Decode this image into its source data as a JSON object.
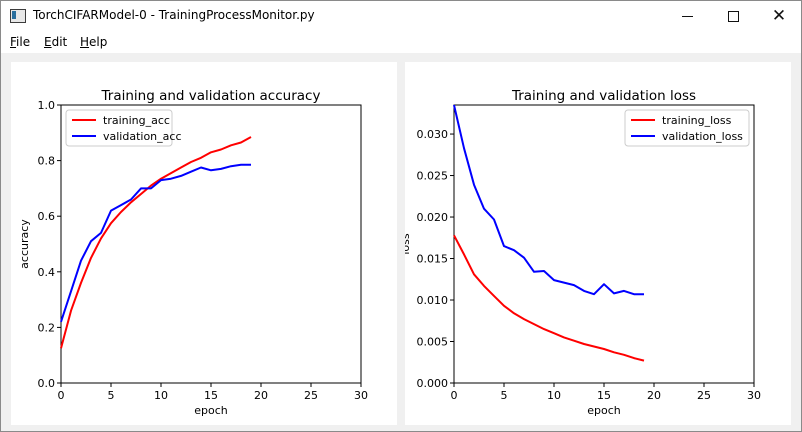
{
  "window": {
    "title": "TorchCIFARModel-0 - TrainingProcessMonitor.py",
    "controls": {
      "minimize": "minimize",
      "maximize": "maximize",
      "close": "✕"
    }
  },
  "menu": {
    "items": [
      {
        "first": "F",
        "rest": "ile"
      },
      {
        "first": "E",
        "rest": "dit"
      },
      {
        "first": "H",
        "rest": "elp"
      }
    ]
  },
  "colors": {
    "training": "#ff0000",
    "validation": "#0000ff"
  },
  "chart_data": [
    {
      "type": "line",
      "title": "Training and validation accuracy",
      "xlabel": "epoch",
      "ylabel": "accuracy",
      "xlim": [
        0,
        30
      ],
      "ylim": [
        0.0,
        1.0
      ],
      "xticks": [
        "0",
        "5",
        "10",
        "15",
        "20",
        "25",
        "30"
      ],
      "yticks": [
        "0.0",
        "0.2",
        "0.4",
        "0.6",
        "0.8",
        "1.0"
      ],
      "legend_position": "top-left",
      "x": [
        0,
        1,
        2,
        3,
        4,
        5,
        6,
        7,
        8,
        9,
        10,
        11,
        12,
        13,
        14,
        15,
        16,
        17,
        18,
        19
      ],
      "series": [
        {
          "name": "training_acc",
          "color": "#ff0000",
          "values": [
            0.125,
            0.26,
            0.36,
            0.45,
            0.52,
            0.575,
            0.615,
            0.65,
            0.68,
            0.71,
            0.735,
            0.755,
            0.775,
            0.795,
            0.81,
            0.83,
            0.84,
            0.855,
            0.865,
            0.885
          ]
        },
        {
          "name": "validation_acc",
          "color": "#0000ff",
          "values": [
            0.22,
            0.33,
            0.44,
            0.51,
            0.54,
            0.62,
            0.64,
            0.66,
            0.7,
            0.7,
            0.73,
            0.735,
            0.745,
            0.76,
            0.775,
            0.765,
            0.77,
            0.78,
            0.785,
            0.785
          ]
        }
      ]
    },
    {
      "type": "line",
      "title": "Training and validation loss",
      "xlabel": "epoch",
      "ylabel": "loss",
      "xlim": [
        0,
        30
      ],
      "ylim": [
        0.0,
        0.0335
      ],
      "xticks": [
        "0",
        "5",
        "10",
        "15",
        "20",
        "25",
        "30"
      ],
      "yticks": [
        "0.000",
        "0.005",
        "0.010",
        "0.015",
        "0.020",
        "0.025",
        "0.030"
      ],
      "ytick_values": [
        0.0,
        0.005,
        0.01,
        0.015,
        0.02,
        0.025,
        0.03
      ],
      "legend_position": "top-right",
      "x": [
        0,
        1,
        2,
        3,
        4,
        5,
        6,
        7,
        8,
        9,
        10,
        11,
        12,
        13,
        14,
        15,
        16,
        17,
        18,
        19
      ],
      "series": [
        {
          "name": "training_loss",
          "color": "#ff0000",
          "values": [
            0.0178,
            0.0155,
            0.0131,
            0.0117,
            0.0105,
            0.0093,
            0.0084,
            0.0077,
            0.0071,
            0.0065,
            0.006,
            0.0055,
            0.0051,
            0.0047,
            0.0044,
            0.0041,
            0.0037,
            0.0034,
            0.003,
            0.0027
          ]
        },
        {
          "name": "validation_loss",
          "color": "#0000ff",
          "values": [
            0.0335,
            0.0283,
            0.0239,
            0.021,
            0.0197,
            0.0165,
            0.016,
            0.0151,
            0.0134,
            0.0135,
            0.0124,
            0.0121,
            0.0118,
            0.0111,
            0.0107,
            0.0119,
            0.0108,
            0.0111,
            0.0107,
            0.0107
          ]
        }
      ]
    }
  ]
}
